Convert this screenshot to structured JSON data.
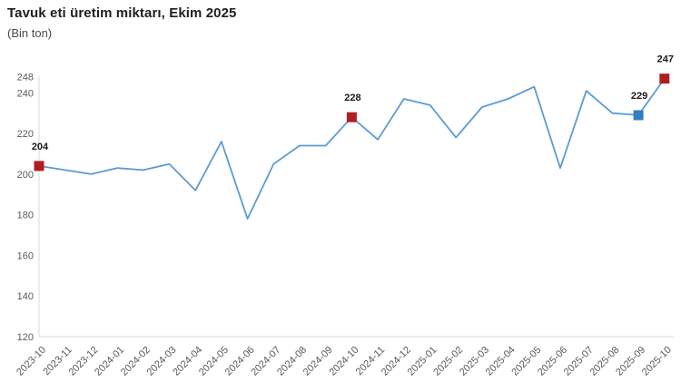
{
  "header": {
    "title": "Tavuk eti üretim miktarı, Ekim 2025",
    "subtitle": "(Bin ton)"
  },
  "colors": {
    "line": "#5b9bd5",
    "marker_primary": "#b01e23",
    "marker_secondary": "#2e80c0",
    "axis_line": "#d9d9d9",
    "tick_text": "#595959",
    "data_label_text": "#1a1a1a"
  },
  "chart_data": {
    "type": "line",
    "title": "Tavuk eti üretim miktarı, Ekim 2025",
    "subtitle": "(Bin ton)",
    "x": [
      "2023-10",
      "2023-11",
      "2023-12",
      "2024-01",
      "2024-02",
      "2024-03",
      "2024-04",
      "2024-05",
      "2024-06",
      "2024-07",
      "2024-08",
      "2024-09",
      "2024-10",
      "2024-11",
      "2024-12",
      "2025-01",
      "2025-02",
      "2025-03",
      "2025-04",
      "2025-05",
      "2025-06",
      "2025-07",
      "2025-08",
      "2025-09",
      "2025-10"
    ],
    "values": [
      204,
      202,
      200,
      203,
      202,
      205,
      192,
      216,
      178,
      205,
      214,
      214,
      228,
      217,
      237,
      234,
      218,
      233,
      237,
      243,
      203,
      241,
      230,
      229,
      247
    ],
    "ylim": [
      120,
      248
    ],
    "yticks": [
      120,
      140,
      160,
      180,
      200,
      220,
      240,
      248
    ],
    "xlabel": "",
    "ylabel": "",
    "grid": false,
    "legend": false,
    "x_tick_rotation": -45,
    "highlighted_points": [
      {
        "x": "2023-10",
        "index": 0,
        "value": 204,
        "label": "204",
        "color": "#b01e23"
      },
      {
        "x": "2024-10",
        "index": 12,
        "value": 228,
        "label": "228",
        "color": "#b01e23"
      },
      {
        "x": "2025-09",
        "index": 23,
        "value": 229,
        "label": "229",
        "color": "#2e80c0"
      },
      {
        "x": "2025-10",
        "index": 24,
        "value": 247,
        "label": "247",
        "color": "#b01e23"
      }
    ]
  }
}
